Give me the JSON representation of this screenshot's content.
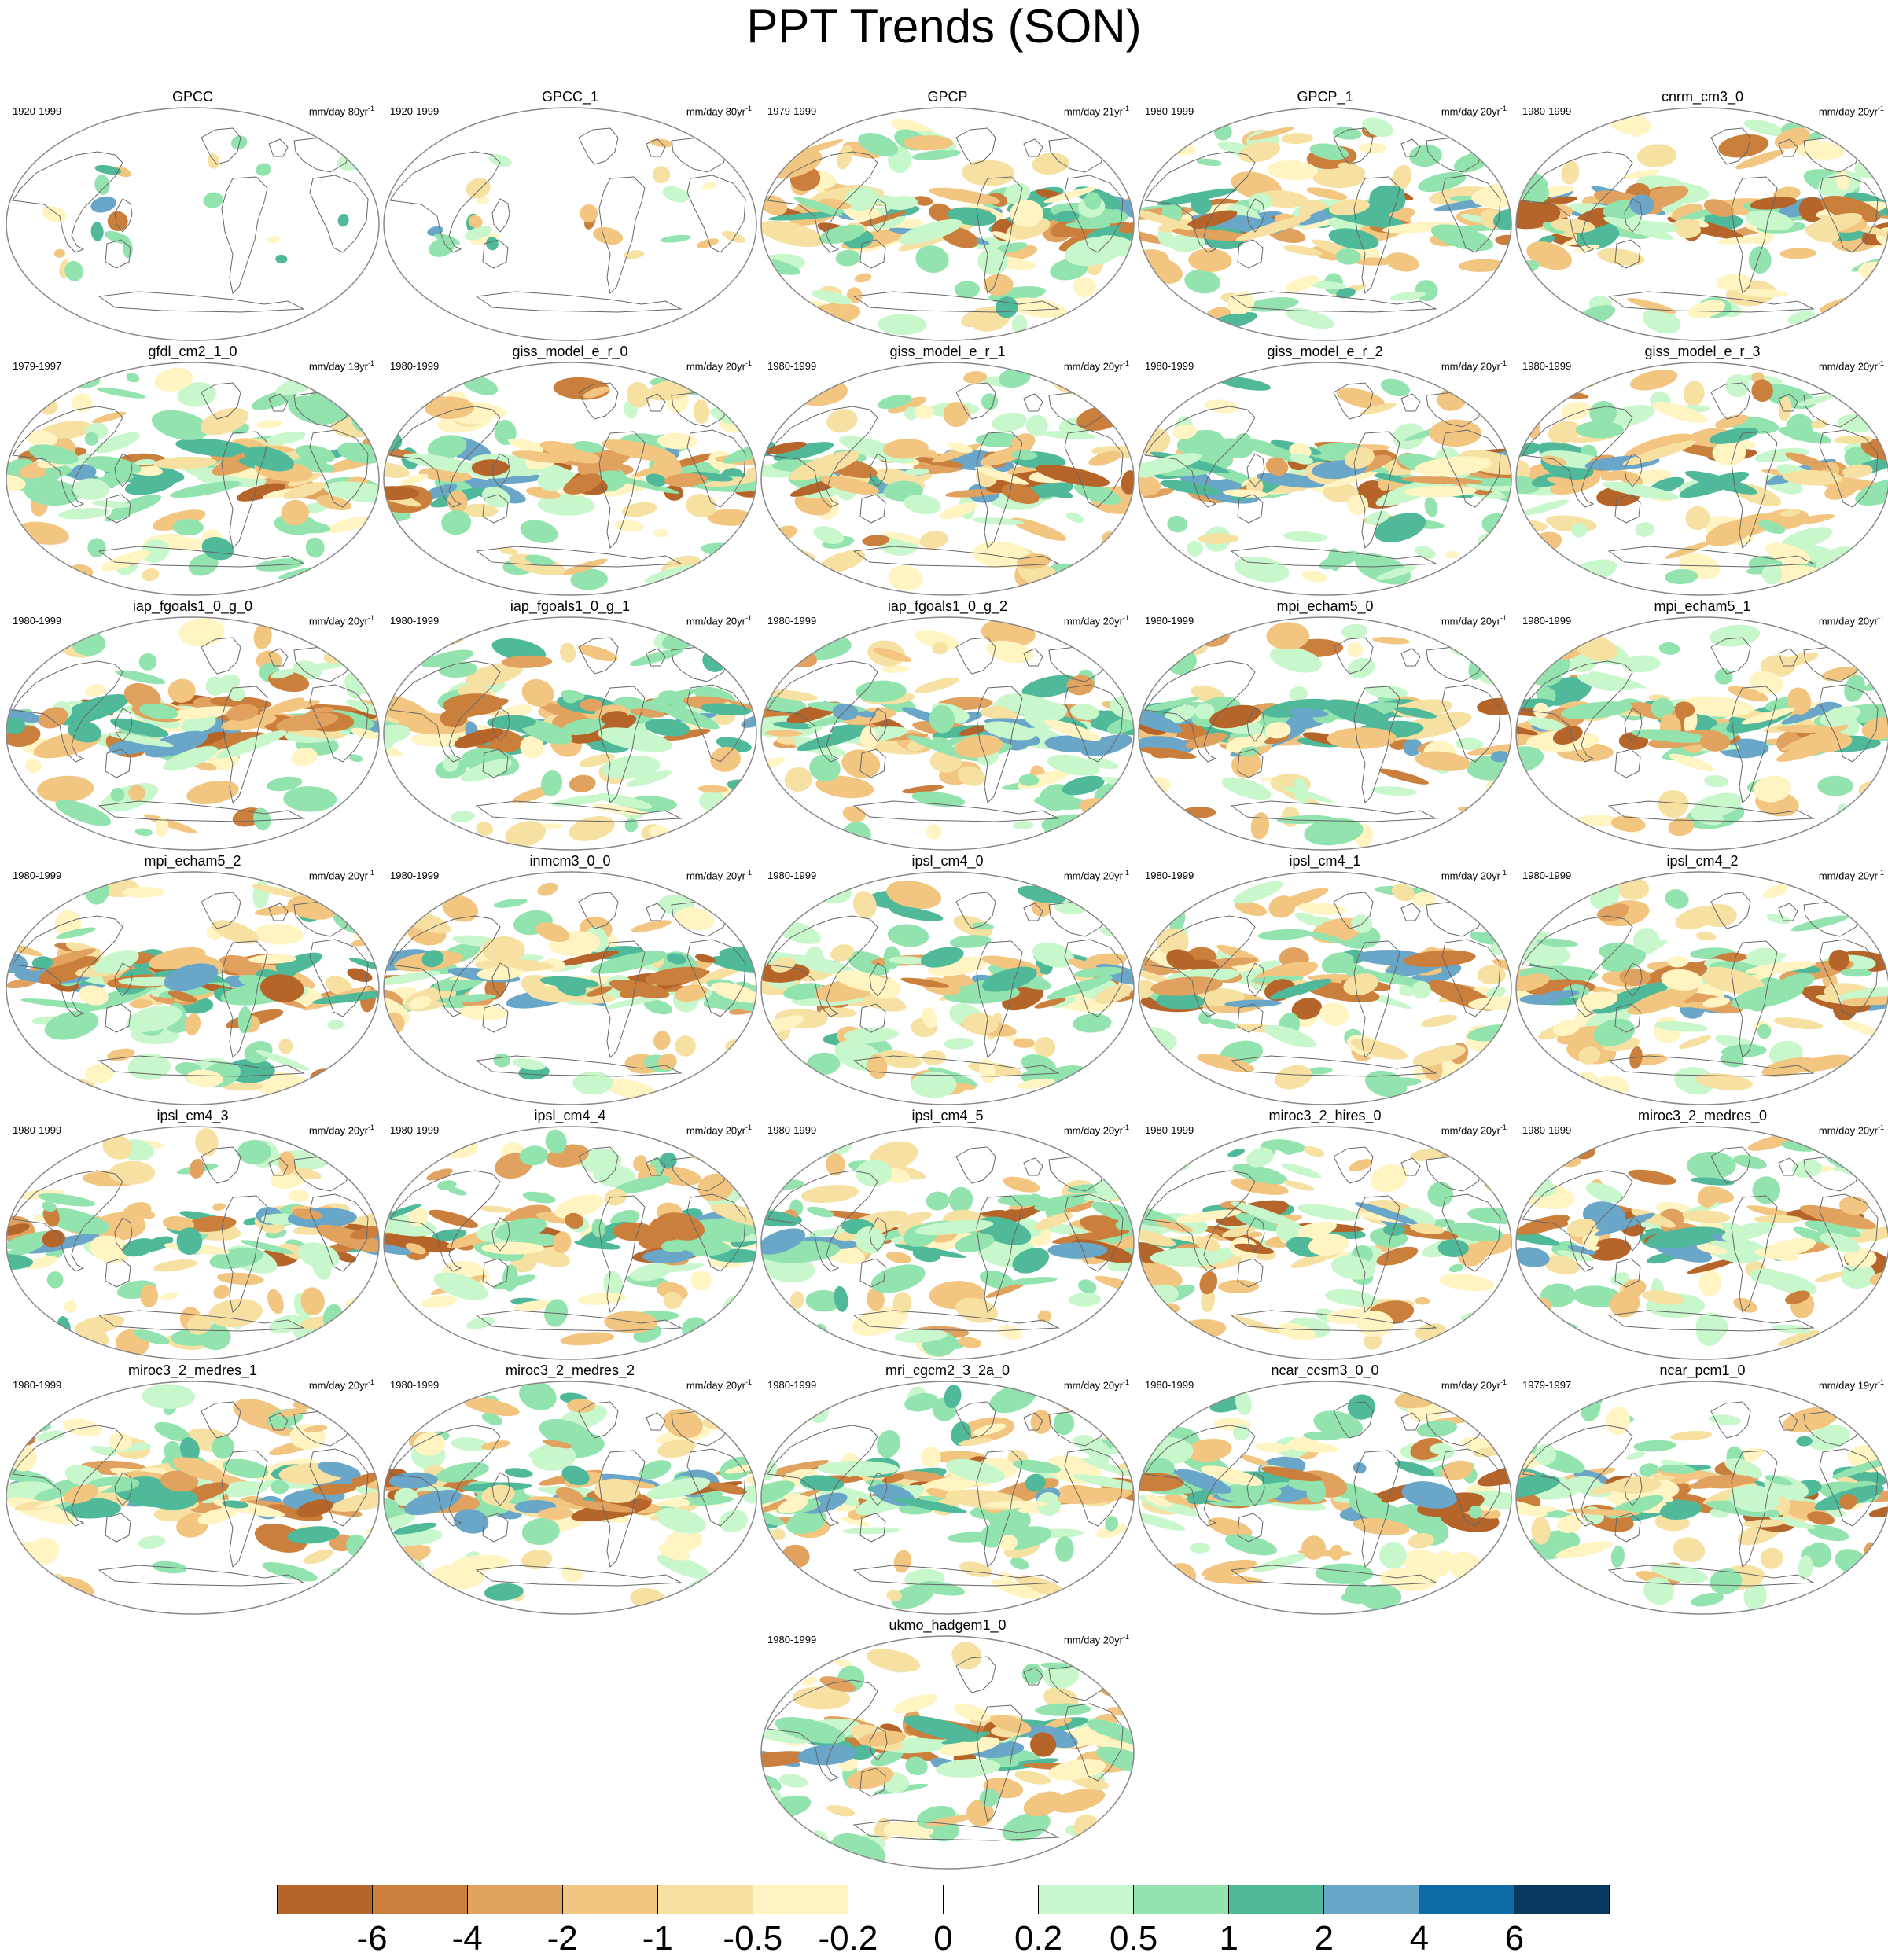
{
  "title": "PPT Trends (SON)",
  "units_prefix": "mm/day",
  "units_exp": "-1",
  "panels": [
    {
      "name": "GPCC",
      "period": "1920-1999",
      "units": "80yr",
      "coverage": "land"
    },
    {
      "name": "GPCC_1",
      "period": "1920-1999",
      "units": "80yr",
      "coverage": "land"
    },
    {
      "name": "GPCP",
      "period": "1979-1999",
      "units": "21yr",
      "coverage": "global"
    },
    {
      "name": "GPCP_1",
      "period": "1980-1999",
      "units": "20yr",
      "coverage": "global"
    },
    {
      "name": "cnrm_cm3_0",
      "period": "1980-1999",
      "units": "20yr",
      "coverage": "global"
    },
    {
      "name": "gfdl_cm2_1_0",
      "period": "1979-1997",
      "units": "19yr",
      "coverage": "global"
    },
    {
      "name": "giss_model_e_r_0",
      "period": "1980-1999",
      "units": "20yr",
      "coverage": "global"
    },
    {
      "name": "giss_model_e_r_1",
      "period": "1980-1999",
      "units": "20yr",
      "coverage": "global"
    },
    {
      "name": "giss_model_e_r_2",
      "period": "1980-1999",
      "units": "20yr",
      "coverage": "global"
    },
    {
      "name": "giss_model_e_r_3",
      "period": "1980-1999",
      "units": "20yr",
      "coverage": "global"
    },
    {
      "name": "iap_fgoals1_0_g_0",
      "period": "1980-1999",
      "units": "20yr",
      "coverage": "global"
    },
    {
      "name": "iap_fgoals1_0_g_1",
      "period": "1980-1999",
      "units": "20yr",
      "coverage": "global"
    },
    {
      "name": "iap_fgoals1_0_g_2",
      "period": "1980-1999",
      "units": "20yr",
      "coverage": "global"
    },
    {
      "name": "mpi_echam5_0",
      "period": "1980-1999",
      "units": "20yr",
      "coverage": "global"
    },
    {
      "name": "mpi_echam5_1",
      "period": "1980-1999",
      "units": "20yr",
      "coverage": "global"
    },
    {
      "name": "mpi_echam5_2",
      "period": "1980-1999",
      "units": "20yr",
      "coverage": "global"
    },
    {
      "name": "inmcm3_0_0",
      "period": "1980-1999",
      "units": "20yr",
      "coverage": "global"
    },
    {
      "name": "ipsl_cm4_0",
      "period": "1980-1999",
      "units": "20yr",
      "coverage": "global"
    },
    {
      "name": "ipsl_cm4_1",
      "period": "1980-1999",
      "units": "20yr",
      "coverage": "global"
    },
    {
      "name": "ipsl_cm4_2",
      "period": "1980-1999",
      "units": "20yr",
      "coverage": "global"
    },
    {
      "name": "ipsl_cm4_3",
      "period": "1980-1999",
      "units": "20yr",
      "coverage": "global"
    },
    {
      "name": "ipsl_cm4_4",
      "period": "1980-1999",
      "units": "20yr",
      "coverage": "global"
    },
    {
      "name": "ipsl_cm4_5",
      "period": "1980-1999",
      "units": "20yr",
      "coverage": "global"
    },
    {
      "name": "miroc3_2_hires_0",
      "period": "1980-1999",
      "units": "20yr",
      "coverage": "global"
    },
    {
      "name": "miroc3_2_medres_0",
      "period": "1980-1999",
      "units": "20yr",
      "coverage": "global"
    },
    {
      "name": "miroc3_2_medres_1",
      "period": "1980-1999",
      "units": "20yr",
      "coverage": "global"
    },
    {
      "name": "miroc3_2_medres_2",
      "period": "1980-1999",
      "units": "20yr",
      "coverage": "global"
    },
    {
      "name": "mri_cgcm2_3_2a_0",
      "period": "1980-1999",
      "units": "20yr",
      "coverage": "global"
    },
    {
      "name": "ncar_ccsm3_0_0",
      "period": "1980-1999",
      "units": "20yr",
      "coverage": "global"
    },
    {
      "name": "ncar_pcm1_0",
      "period": "1979-1997",
      "units": "19yr",
      "coverage": "global"
    },
    {
      "name": "ukmo_hadgem1_0",
      "period": "1980-1999",
      "units": "20yr",
      "coverage": "global"
    }
  ],
  "colorbar": {
    "colors": [
      "#b5652a",
      "#cb7f3c",
      "#e0a25e",
      "#f2c680",
      "#f6e0a2",
      "#fff4c2",
      "#ffffff",
      "#ffffff",
      "#c8f7cc",
      "#93e3ae",
      "#4fb99a",
      "#6aa6c8",
      "#0f6ba8",
      "#073a5e"
    ],
    "labels": [
      "-6",
      "-4",
      "-2",
      "-1",
      "-0.5",
      "-0.2",
      "0",
      "0.2",
      "0.5",
      "1",
      "2",
      "4",
      "6"
    ]
  }
}
